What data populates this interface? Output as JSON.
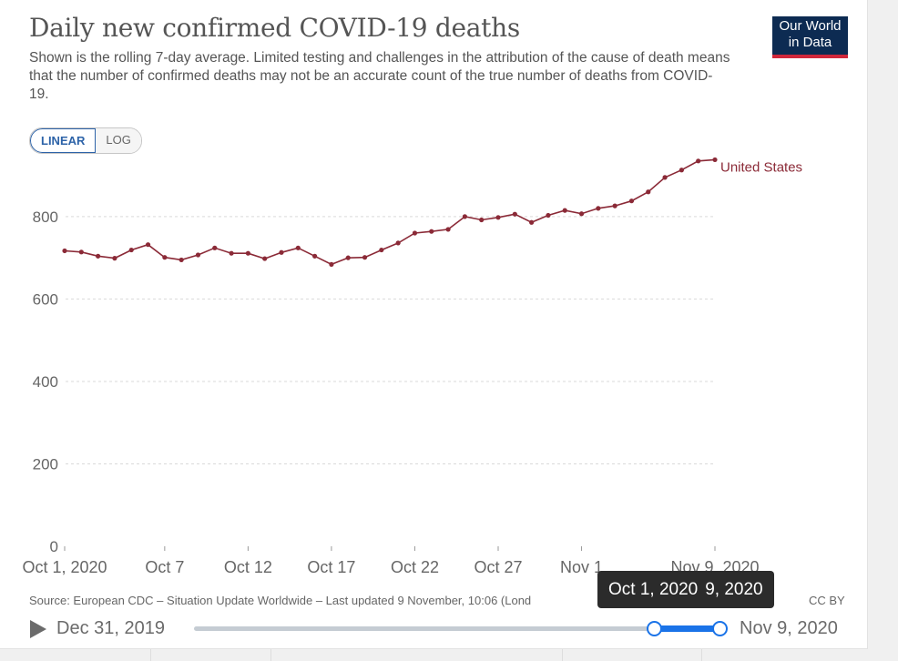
{
  "header": {
    "title": "Daily new confirmed COVID-19 deaths",
    "subtitle": "Shown is the rolling 7-day average. Limited testing and challenges in the attribution of the cause of death means that the number of confirmed deaths may not be an accurate count of the true number of deaths from COVID-19.",
    "logo_line1": "Our World",
    "logo_line2": "in Data"
  },
  "scale": {
    "linear": "LINEAR",
    "log": "LOG",
    "active": "linear"
  },
  "chart_data": {
    "type": "line",
    "title": "Daily new confirmed COVID-19 deaths",
    "xlabel": "",
    "ylabel": "",
    "ylim": [
      0,
      950
    ],
    "yticks": [
      0,
      200,
      400,
      600,
      800
    ],
    "x_tick_labels": [
      {
        "index": 0,
        "label": "Oct 1, 2020"
      },
      {
        "index": 6,
        "label": "Oct 7"
      },
      {
        "index": 11,
        "label": "Oct 12"
      },
      {
        "index": 16,
        "label": "Oct 17"
      },
      {
        "index": 21,
        "label": "Oct 22"
      },
      {
        "index": 26,
        "label": "Oct 27"
      },
      {
        "index": 31,
        "label": "Nov 1"
      },
      {
        "index": 39,
        "label": "Nov 9, 2020"
      }
    ],
    "grid": true,
    "series": [
      {
        "name": "United States",
        "color": "#8b2a37",
        "start_date": "2020-10-01",
        "values": [
          717,
          714,
          704,
          699,
          719,
          732,
          701,
          695,
          707,
          724,
          711,
          711,
          698,
          713,
          724,
          704,
          684,
          700,
          701,
          719,
          736,
          760,
          764,
          769,
          800,
          792,
          798,
          806,
          786,
          803,
          815,
          807,
          820,
          826,
          838,
          860,
          895,
          913,
          935,
          938
        ]
      }
    ]
  },
  "footer": {
    "source": "Source: European CDC – Situation Update Worldwide – Last updated 9 November, 10:06 (Lond",
    "license": "CC BY"
  },
  "timeline": {
    "start_label": "Dec 31, 2019",
    "end_label": "Nov 9, 2020",
    "tooltip_start": "Oct 1, 2020",
    "tooltip_end": "9, 2020"
  }
}
